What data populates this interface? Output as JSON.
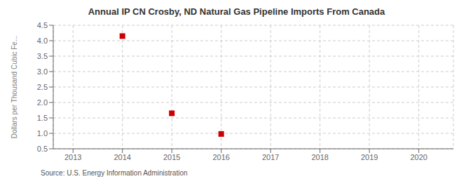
{
  "chart_data": {
    "type": "scatter",
    "title": "Annual IP CN Crosby, ND Natural Gas Pipeline Imports From Canada",
    "ylabel": "Dollars per Thousand Cubic Fe...",
    "source": "Source: U.S. Energy Information Administration",
    "x": [
      2014,
      2015,
      2016
    ],
    "values": [
      4.15,
      1.65,
      0.98
    ],
    "color": "#cc0000",
    "marker": "square",
    "xlim": [
      2012.6,
      2020.7
    ],
    "xticks": [
      2013,
      2014,
      2015,
      2016,
      2017,
      2018,
      2019,
      2020
    ],
    "ylim": [
      0.5,
      4.5
    ],
    "yticks": [
      0.5,
      {
        "value": 1.0,
        "label": "1.0"
      },
      1.5,
      {
        "value": 2.0,
        "label": "2.0"
      },
      2.5,
      {
        "value": 3.0,
        "label": "3.0"
      },
      3.5,
      {
        "value": 4.0,
        "label": "4.0"
      },
      4.5
    ],
    "grid": true
  }
}
